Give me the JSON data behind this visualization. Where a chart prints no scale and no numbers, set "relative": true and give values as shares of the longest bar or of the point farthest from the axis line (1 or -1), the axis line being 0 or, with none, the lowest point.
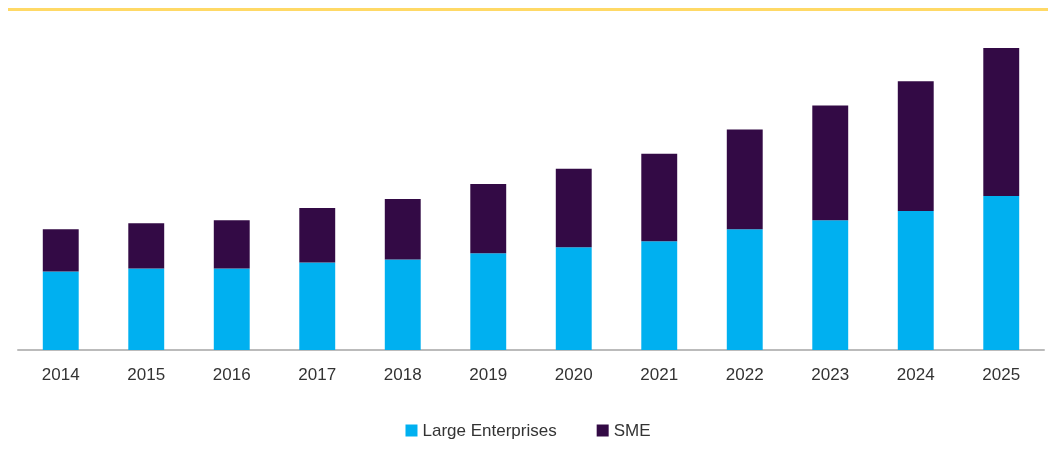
{
  "chart_data": {
    "type": "bar",
    "stacked": true,
    "relative": true,
    "legend": "bottom",
    "categories": [
      "2014",
      "2015",
      "2016",
      "2017",
      "2018",
      "2019",
      "2020",
      "2021",
      "2022",
      "2023",
      "2024",
      "2025"
    ],
    "series": [
      {
        "name": "Large Enterprises",
        "color": "#00b0f0",
        "values": [
          0.26,
          0.27,
          0.27,
          0.29,
          0.3,
          0.32,
          0.34,
          0.36,
          0.4,
          0.43,
          0.46,
          0.51
        ]
      },
      {
        "name": "SME",
        "color": "#330a45",
        "values": [
          0.14,
          0.15,
          0.16,
          0.18,
          0.2,
          0.23,
          0.26,
          0.29,
          0.33,
          0.38,
          0.43,
          0.49
        ]
      }
    ]
  }
}
